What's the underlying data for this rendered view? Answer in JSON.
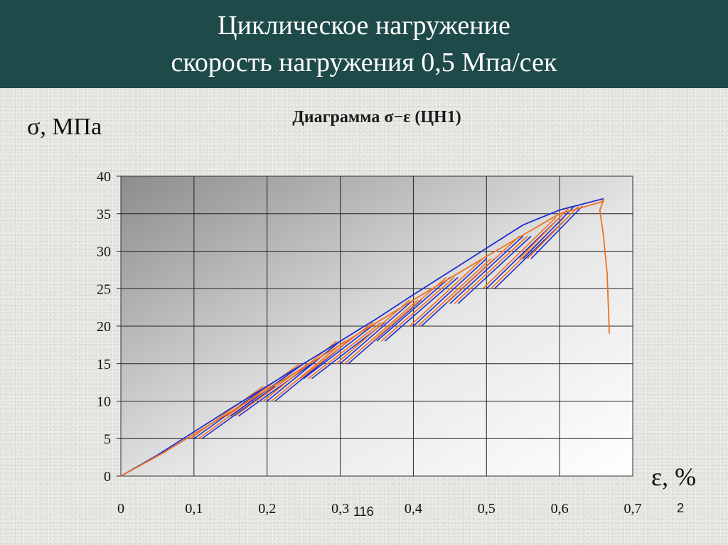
{
  "header": {
    "line1": "Циклическое нагружение",
    "line2": "скорость нагружения  0,5 Мпа/сек"
  },
  "footer": {
    "page_left": "116",
    "page_right": "2"
  },
  "chart_data": {
    "type": "line",
    "title": "Диаграмма σ−ε  (ЦН1)",
    "ylabel": "σ, МПа",
    "xlabel": "ε, %",
    "xlim": [
      0,
      0.7
    ],
    "ylim": [
      0,
      40
    ],
    "x_ticks": [
      "0",
      "0,1",
      "0,2",
      "0,3",
      "0,4",
      "0,5",
      "0,6",
      "0,7"
    ],
    "y_ticks": [
      "0",
      "5",
      "10",
      "15",
      "20",
      "25",
      "30",
      "35",
      "40"
    ],
    "grid": true,
    "series": [
      {
        "color": "#1f2fd0",
        "points": [
          [
            0,
            0
          ],
          [
            0.05,
            2.8
          ],
          [
            0.1,
            5.9
          ],
          [
            0.15,
            9
          ],
          [
            0.2,
            12
          ],
          [
            0.25,
            15
          ],
          [
            0.3,
            18
          ],
          [
            0.35,
            21
          ],
          [
            0.4,
            24.2
          ],
          [
            0.45,
            27.3
          ],
          [
            0.5,
            30.4
          ],
          [
            0.55,
            33.5
          ],
          [
            0.6,
            35.5
          ],
          [
            0.66,
            37
          ]
        ]
      },
      {
        "color": "#f07020",
        "points": [
          [
            0,
            0
          ],
          [
            0.06,
            3.2
          ],
          [
            0.1,
            5.6
          ],
          [
            0.2,
            11.5
          ],
          [
            0.3,
            17.5
          ],
          [
            0.4,
            23.5
          ],
          [
            0.5,
            29.3
          ],
          [
            0.6,
            35.0
          ],
          [
            0.655,
            36.5
          ],
          [
            0.66,
            36.8
          ],
          [
            0.655,
            35.5
          ],
          [
            0.66,
            32
          ],
          [
            0.665,
            27
          ],
          [
            0.668,
            19
          ]
        ]
      }
    ],
    "cycles": [
      {
        "from": [
          0.1,
          5
        ],
        "to": [
          0.2,
          12
        ]
      },
      {
        "from": [
          0.15,
          8
        ],
        "to": [
          0.25,
          15
        ]
      },
      {
        "from": [
          0.2,
          10
        ],
        "to": [
          0.3,
          18
        ]
      },
      {
        "from": [
          0.25,
          13
        ],
        "to": [
          0.35,
          20.5
        ]
      },
      {
        "from": [
          0.3,
          15
        ],
        "to": [
          0.4,
          23.5
        ]
      },
      {
        "from": [
          0.35,
          18
        ],
        "to": [
          0.45,
          26.5
        ]
      },
      {
        "from": [
          0.4,
          20
        ],
        "to": [
          0.5,
          29
        ]
      },
      {
        "from": [
          0.45,
          23
        ],
        "to": [
          0.55,
          32
        ]
      },
      {
        "from": [
          0.5,
          25
        ],
        "to": [
          0.6,
          34.5
        ]
      },
      {
        "from": [
          0.55,
          29
        ],
        "to": [
          0.62,
          36
        ]
      }
    ]
  }
}
